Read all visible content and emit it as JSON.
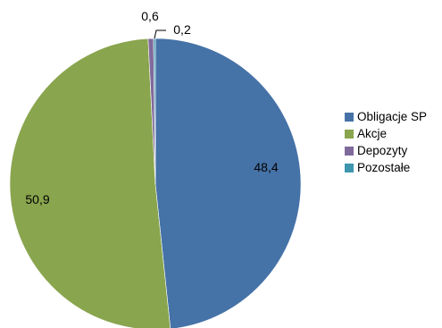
{
  "chart_data": {
    "type": "pie",
    "title": "",
    "categories": [
      "Obligacje SP",
      "Akcje",
      "Depozyty",
      "Pozostałe"
    ],
    "values": [
      48.4,
      50.9,
      0.6,
      0.2
    ],
    "value_labels": [
      "48,4",
      "50,9",
      "0,6",
      "0,2"
    ],
    "colors": [
      "#4572a7",
      "#89a54e",
      "#80699b",
      "#3d96ae"
    ],
    "legend_position": "right",
    "start": "12 o'clock, clockwise"
  }
}
